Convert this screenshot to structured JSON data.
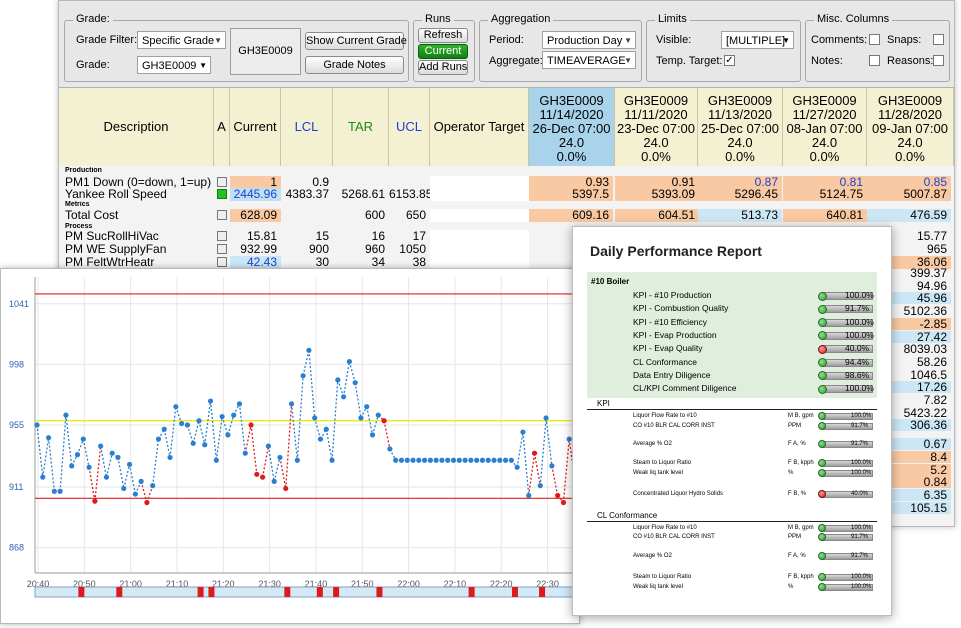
{
  "toolbar": {
    "grade_group": "Grade:",
    "grade_filter_label": "Grade Filter:",
    "grade_filter_value": "Specific Grade",
    "grade_label": "Grade:",
    "grade_value": "GH3E0009",
    "grade_display": "GH3E0009",
    "show_current_grade": "Show Current Grade",
    "grade_notes": "Grade Notes",
    "runs_group": "Runs",
    "refresh": "Refresh",
    "current": "Current",
    "add_runs": "Add Runs",
    "aggregation_group": "Aggregation",
    "period_label": "Period:",
    "period_value": "Production Day",
    "aggregate_label": "Aggregate:",
    "aggregate_value": "TIMEAVERAGE",
    "limits_group": "Limits",
    "visible_label": "Visible:",
    "visible_value": "[MULTIPLE]",
    "temp_target_label": "Temp. Target:",
    "temp_target_checked": true,
    "misc_group": "Misc. Columns",
    "comments_label": "Comments:",
    "snaps_label": "Snaps:",
    "notes_label": "Notes:",
    "reasons_label": "Reasons:"
  },
  "grid": {
    "headers": {
      "description": "Description",
      "a": "A",
      "current": "Current",
      "lcl": "LCL",
      "tar": "TAR",
      "ucl": "UCL",
      "operator_target": "Operator Target"
    },
    "runs": [
      {
        "grade": "GH3E0009",
        "date": "11/14/2020",
        "time": "26-Dec 07:00",
        "value": "24.0",
        "pct": "0.0%"
      },
      {
        "grade": "GH3E0009",
        "date": "11/11/2020",
        "time": "23-Dec 07:00",
        "value": "24.0",
        "pct": "0.0%"
      },
      {
        "grade": "GH3E0009",
        "date": "11/13/2020",
        "time": "25-Dec 07:00",
        "value": "24.0",
        "pct": "0.0%"
      },
      {
        "grade": "GH3E0009",
        "date": "11/27/2020",
        "time": "08-Jan 07:00",
        "value": "24.0",
        "pct": "0.0%"
      },
      {
        "grade": "GH3E0009",
        "date": "11/28/2020",
        "time": "09-Jan 07:00",
        "value": "24.0",
        "pct": "0.0%"
      }
    ],
    "sections": {
      "production": "Production",
      "metrics": "Metrics",
      "process": "Process"
    },
    "rows": [
      {
        "name": "PM1 Down (0=down, 1=up)",
        "current": "1",
        "lcl": "0.9",
        "tar": "",
        "ucl": "",
        "vals": [
          "0.93",
          "0.91",
          "0.87",
          "0.81",
          "0.85"
        ]
      },
      {
        "name": "Yankee Roll Speed",
        "current": "2445.96",
        "lcl": "4383.37",
        "tar": "5268.61",
        "ucl": "6153.85",
        "vals": [
          "5397.5",
          "5393.09",
          "5296.45",
          "5124.75",
          "5007.87"
        ]
      },
      {
        "name": "Total Cost",
        "current": "628.09",
        "lcl": "",
        "tar": "600",
        "ucl": "650",
        "vals": [
          "609.16",
          "604.51",
          "513.73",
          "640.81",
          "476.59"
        ]
      },
      {
        "name": "PM SucRollHiVac",
        "current": "15.81",
        "lcl": "15",
        "tar": "16",
        "ucl": "17",
        "vals": [
          "",
          "",
          "",
          "",
          "15.77"
        ]
      },
      {
        "name": "PM WE SupplyFan",
        "current": "932.99",
        "lcl": "900",
        "tar": "960",
        "ucl": "1050",
        "vals": [
          "",
          "",
          "",
          "",
          "965"
        ]
      },
      {
        "name": "PM FeltWtrHeatr",
        "current": "42.43",
        "lcl": "30",
        "tar": "34",
        "ucl": "38",
        "vals": [
          "",
          "",
          "",
          "",
          "36.06"
        ]
      }
    ],
    "right_column_values": [
      "399.37",
      "94.96",
      "45.96",
      "5102.36",
      "-2.85",
      "27.42",
      "8039.03",
      "58.26",
      "1046.5",
      "17.26",
      "7.82",
      "5423.22",
      "306.36",
      "0.67",
      "8.4",
      "5.2",
      "0.84",
      "6.35",
      "105.15"
    ]
  },
  "chart_data": {
    "type": "line",
    "yticks": [
      "1041",
      "998",
      "955",
      "911",
      "868"
    ],
    "xticks": [
      "20:40",
      "20:50",
      "21:00",
      "21:10",
      "21:20",
      "21:30",
      "21:40",
      "21:50",
      "22:00",
      "22:10",
      "22:20",
      "22:30"
    ],
    "ylim": [
      850,
      1060
    ],
    "limits": {
      "ucl": 1048,
      "target": 958,
      "lcl": 903
    },
    "series": [
      {
        "values": [
          955,
          918,
          946,
          908,
          908,
          962,
          926,
          934,
          945,
          925,
          901,
          940,
          918,
          935,
          932,
          910,
          927,
          906,
          915,
          900,
          912,
          945,
          952,
          932,
          968,
          956,
          955,
          942,
          958,
          941,
          972,
          930,
          961,
          948,
          962,
          970,
          935,
          955,
          920,
          918,
          940,
          915,
          932,
          910,
          970,
          930,
          990,
          1008,
          960,
          945,
          952,
          930,
          987,
          975,
          1000,
          985,
          960,
          968,
          948,
          962,
          958,
          938,
          930,
          930,
          930,
          930,
          930,
          930,
          930,
          930,
          930,
          930,
          930,
          930,
          930,
          930,
          930,
          930,
          930,
          930,
          930,
          930,
          930,
          925,
          950,
          905,
          935,
          912,
          960,
          926,
          905,
          900,
          945,
          915
        ]
      }
    ],
    "alarm_indices": [
      10,
      19,
      37,
      38,
      39,
      43,
      60,
      86,
      90,
      91,
      93
    ],
    "alarm_strip": [
      0.08,
      0.15,
      0.3,
      0.32,
      0.46,
      0.52,
      0.55,
      0.63,
      0.8,
      0.88,
      0.93
    ]
  },
  "report": {
    "title": "Daily Performance Report",
    "section1": "#10 Boiler",
    "kpis": [
      {
        "label": "KPI - #10 Production",
        "value": "100.0%",
        "status": "g"
      },
      {
        "label": "KPI - Combustion Quality",
        "value": "91.7%",
        "status": "g"
      },
      {
        "label": "KPI - #10 Efficiency",
        "value": "100.0%",
        "status": "g"
      },
      {
        "label": "KPI - Evap Production",
        "value": "100.0%",
        "status": "g"
      },
      {
        "label": "KPI - Evap Quality",
        "value": "40.0%",
        "status": "r"
      },
      {
        "label": "CL Conformance",
        "value": "94.4%",
        "status": "g"
      },
      {
        "label": "Data Entry Diligence",
        "value": "98.6%",
        "status": "g"
      },
      {
        "label": "CL/KPI Comment Diligence",
        "value": "100.0%",
        "status": "g"
      }
    ],
    "section2": "KPI",
    "kpi_rows": [
      {
        "label": "Liquor Flow Rate to #10",
        "unit": "M B, gpm",
        "value": "100.0%",
        "status": "g"
      },
      {
        "label": "CO #10 BLR CAL CORR INST",
        "unit": "PPM",
        "value": "91.7%",
        "status": "g"
      },
      {
        "label": "Average % O2",
        "unit": "F A, %",
        "value": "91.7%",
        "status": "g"
      },
      {
        "label": "Steam to Liquor Ratio",
        "unit": "F B, kpph",
        "value": "100.0%",
        "status": "g"
      },
      {
        "label": "Weak liq tank level",
        "unit": "%",
        "value": "100.0%",
        "status": "g"
      },
      {
        "label": "Concentrated Liquor Hydro Solids",
        "unit": "F B, %",
        "value": "40.0%",
        "status": "r"
      }
    ],
    "section3": "CL Conformance",
    "cl_rows": [
      {
        "label": "Liquor Flow Rate to #10",
        "unit": "M B, gpm",
        "value": "100.0%",
        "status": "g"
      },
      {
        "label": "CO #10 BLR CAL CORR INST",
        "unit": "PPM",
        "value": "91.7%",
        "status": "g"
      },
      {
        "label": "Average % O2",
        "unit": "F A, %",
        "value": "91.7%",
        "status": "g"
      },
      {
        "label": "Steam to Liquor Ratio",
        "unit": "F B, kpph",
        "value": "100.0%",
        "status": "g"
      },
      {
        "label": "Weak liq tank level",
        "unit": "%",
        "value": "100.0%",
        "status": "g"
      }
    ]
  }
}
